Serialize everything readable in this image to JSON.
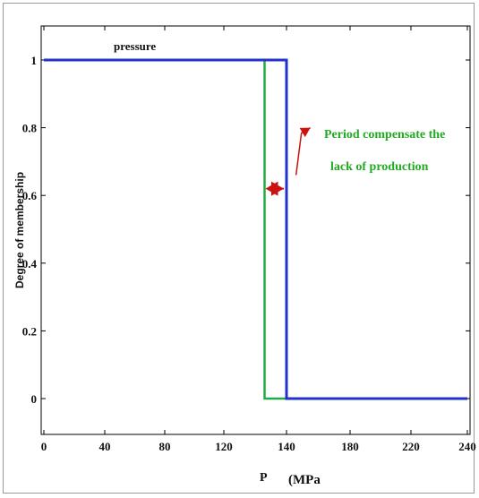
{
  "chart_data": {
    "type": "line",
    "xlabel": "P",
    "x_unit": "(MPa",
    "ylabel": "Degree of membership",
    "xlim": [
      0,
      240
    ],
    "ylim": [
      -0.1,
      1.1
    ],
    "x_ticks": [
      0,
      40,
      80,
      120,
      140,
      180,
      220,
      240
    ],
    "y_ticks": [
      0,
      0.2,
      0.4,
      0.6,
      0.8,
      1
    ],
    "x_tick_labels": [
      "0",
      "40",
      "80",
      "120",
      "140",
      "180",
      "220",
      "240"
    ],
    "y_tick_labels": [
      "0",
      "0.2",
      "0.4",
      "0.6",
      "0.8",
      "1"
    ],
    "grid": false,
    "series": [
      {
        "name": "pressure",
        "color": "#2233cc",
        "x": [
          0,
          140,
          140,
          240
        ],
        "y": [
          1,
          1,
          0,
          0
        ]
      },
      {
        "color": "#22aa44",
        "x": [
          133,
          133,
          140
        ],
        "y": [
          1,
          0,
          0
        ]
      }
    ],
    "annotation": {
      "line1": "Period compensate the",
      "line2": "lack of production",
      "text_color": "#22aa22",
      "arrow_color": "#cc1111",
      "span_x": [
        133,
        140
      ],
      "span_y": 0.62,
      "pointer_from": [
        146,
        0.66
      ],
      "pointer_to": [
        155,
        0.8
      ]
    }
  }
}
